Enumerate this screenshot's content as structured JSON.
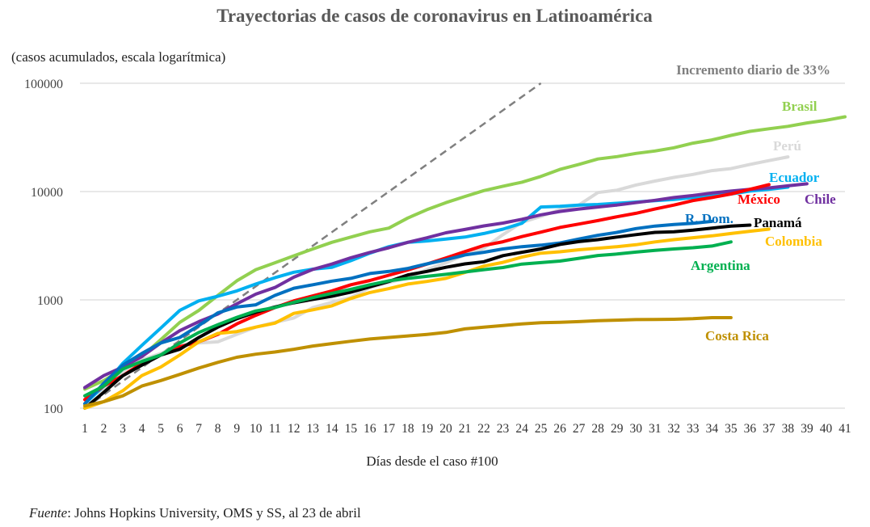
{
  "chart_data": {
    "type": "line",
    "title": "Trayectorias de casos de coronavirus en Latinoamérica",
    "subtitle": "(casos acumulados, escala logarítmica)",
    "xlabel": "Días desde el caso #100",
    "ylabel": "",
    "y_scale": "log",
    "ylim": [
      100,
      100000
    ],
    "xlim": [
      1,
      41
    ],
    "y_ticks": [
      "100",
      "1000",
      "10000",
      "100000"
    ],
    "x_ticks": [
      "1",
      "2",
      "3",
      "4",
      "5",
      "6",
      "7",
      "8",
      "9",
      "10",
      "11",
      "12",
      "13",
      "14",
      "15",
      "16",
      "17",
      "18",
      "19",
      "20",
      "21",
      "22",
      "23",
      "24",
      "25",
      "26",
      "27",
      "28",
      "29",
      "30",
      "31",
      "32",
      "33",
      "34",
      "35",
      "36",
      "37",
      "38",
      "39",
      "40",
      "41"
    ],
    "grid": "horizontal",
    "reference_line": {
      "label": "Incremento diario de 33%",
      "color": "#808080",
      "style": "dashed",
      "x": [
        1,
        25
      ],
      "y": [
        100,
        100000
      ]
    },
    "series": [
      {
        "name": "Brasil",
        "color": "#92d050",
        "x": [
          1,
          2,
          3,
          4,
          5,
          6,
          7,
          8,
          9,
          10,
          11,
          12,
          13,
          14,
          15,
          16,
          17,
          18,
          19,
          20,
          21,
          22,
          23,
          24,
          25,
          26,
          27,
          28,
          29,
          30,
          31,
          32,
          33,
          34,
          35,
          36,
          37,
          38,
          39,
          40,
          41
        ],
        "values": [
          150,
          180,
          230,
          300,
          430,
          620,
          800,
          1100,
          1500,
          1900,
          2200,
          2550,
          2950,
          3400,
          3800,
          4250,
          4600,
          5700,
          6800,
          7900,
          9000,
          10200,
          11200,
          12200,
          13800,
          16000,
          17800,
          20000,
          21000,
          22500,
          23700,
          25400,
          28000,
          30000,
          33000,
          36000,
          38000,
          40000,
          43000,
          45500,
          49000
        ]
      },
      {
        "name": "Perú",
        "color": "#d9d9d9",
        "x": [
          1,
          2,
          3,
          4,
          5,
          6,
          7,
          8,
          9,
          10,
          11,
          12,
          13,
          14,
          15,
          16,
          17,
          18,
          19,
          20,
          21,
          22,
          23,
          24,
          25,
          26,
          27,
          28,
          29,
          30,
          31,
          32,
          33,
          34,
          35,
          36,
          37,
          38
        ],
        "values": [
          120,
          150,
          220,
          280,
          320,
          380,
          400,
          410,
          480,
          560,
          620,
          680,
          850,
          950,
          1050,
          1300,
          1450,
          1600,
          1900,
          2200,
          2600,
          3000,
          4000,
          5200,
          5900,
          6800,
          7500,
          9800,
          10300,
          11500,
          12500,
          13500,
          14400,
          15600,
          16300,
          17800,
          19300,
          20900
        ]
      },
      {
        "name": "Ecuador",
        "color": "#00b0f0",
        "x": [
          1,
          2,
          3,
          4,
          5,
          6,
          7,
          8,
          9,
          10,
          11,
          12,
          13,
          14,
          15,
          16,
          17,
          18,
          19,
          20,
          21,
          22,
          23,
          24,
          25,
          26,
          27,
          28,
          29,
          30,
          31,
          32,
          33,
          34,
          35,
          36,
          37,
          38
        ],
        "values": [
          110,
          160,
          260,
          380,
          550,
          800,
          980,
          1080,
          1210,
          1400,
          1600,
          1800,
          1920,
          2000,
          2300,
          2700,
          3100,
          3400,
          3500,
          3650,
          3800,
          4100,
          4500,
          5100,
          7200,
          7300,
          7500,
          7600,
          7800,
          8000,
          8250,
          8450,
          8800,
          9200,
          9500,
          10100,
          10500,
          11000
        ]
      },
      {
        "name": "Chile",
        "color": "#7030a0",
        "x": [
          1,
          2,
          3,
          4,
          5,
          6,
          7,
          8,
          9,
          10,
          11,
          12,
          13,
          14,
          15,
          16,
          17,
          18,
          19,
          20,
          21,
          22,
          23,
          24,
          25,
          26,
          27,
          28,
          29,
          30,
          31,
          32,
          33,
          34,
          35,
          36,
          37,
          38,
          39
        ],
        "values": [
          155,
          200,
          240,
          300,
          400,
          520,
          630,
          740,
          920,
          1130,
          1300,
          1620,
          1910,
          2140,
          2450,
          2740,
          3030,
          3400,
          3740,
          4160,
          4470,
          4820,
          5120,
          5550,
          6100,
          6550,
          6900,
          7200,
          7500,
          7900,
          8300,
          8800,
          9200,
          9700,
          10100,
          10500,
          10800,
          11300,
          11800
        ]
      },
      {
        "name": "México",
        "color": "#ff0000",
        "x": [
          1,
          2,
          3,
          4,
          5,
          6,
          7,
          8,
          9,
          10,
          11,
          12,
          13,
          14,
          15,
          16,
          17,
          18,
          19,
          20,
          21,
          22,
          23,
          24,
          25,
          26,
          27,
          28,
          29,
          30,
          31,
          32,
          33,
          34,
          35,
          36,
          37
        ],
        "values": [
          120,
          160,
          200,
          260,
          310,
          370,
          410,
          480,
          600,
          720,
          850,
          980,
          1090,
          1210,
          1380,
          1510,
          1690,
          1890,
          2140,
          2440,
          2790,
          3180,
          3440,
          3840,
          4220,
          4660,
          5010,
          5400,
          5850,
          6300,
          6900,
          7500,
          8250,
          8800,
          9500,
          10500,
          11600
        ]
      },
      {
        "name": "R. Dom.",
        "color": "#0070c0",
        "x": [
          1,
          2,
          3,
          4,
          5,
          6,
          7,
          8,
          9,
          10,
          11,
          12,
          13,
          14,
          15,
          16,
          17,
          18,
          19,
          20,
          21,
          22,
          23,
          24,
          25,
          26,
          27,
          28,
          29,
          30,
          31,
          32,
          33,
          34
        ],
        "values": [
          110,
          170,
          250,
          320,
          400,
          450,
          580,
          760,
          860,
          900,
          1100,
          1280,
          1380,
          1490,
          1580,
          1750,
          1830,
          1950,
          2150,
          2350,
          2600,
          2750,
          2950,
          3100,
          3200,
          3350,
          3650,
          3950,
          4200,
          4550,
          4800,
          4960,
          5100,
          5300
        ]
      },
      {
        "name": "Panamá",
        "color": "#000000",
        "x": [
          1,
          2,
          3,
          4,
          5,
          6,
          7,
          8,
          9,
          10,
          11,
          12,
          13,
          14,
          15,
          16,
          17,
          18,
          19,
          20,
          21,
          22,
          23,
          24,
          25,
          26,
          27,
          28,
          29,
          30,
          31,
          32,
          33,
          34,
          35,
          36
        ],
        "values": [
          100,
          140,
          200,
          250,
          310,
          350,
          450,
          560,
          670,
          770,
          860,
          940,
          1010,
          1080,
          1180,
          1320,
          1480,
          1700,
          1830,
          2000,
          2150,
          2250,
          2560,
          2750,
          2950,
          3250,
          3450,
          3600,
          3800,
          4000,
          4200,
          4250,
          4400,
          4600,
          4800,
          4900
        ]
      },
      {
        "name": "Colombia",
        "color": "#ffc000",
        "x": [
          1,
          2,
          3,
          4,
          5,
          6,
          7,
          8,
          9,
          10,
          11,
          12,
          13,
          14,
          15,
          16,
          17,
          18,
          19,
          20,
          21,
          22,
          23,
          24,
          25,
          26,
          27,
          28,
          29,
          30,
          31,
          32,
          33,
          34,
          35,
          36,
          37
        ],
        "values": [
          100,
          115,
          145,
          200,
          240,
          310,
          410,
          490,
          510,
          560,
          610,
          750,
          810,
          880,
          1030,
          1170,
          1270,
          1400,
          1480,
          1580,
          1790,
          2050,
          2220,
          2480,
          2700,
          2780,
          2900,
          3000,
          3100,
          3230,
          3430,
          3600,
          3750,
          3900,
          4100,
          4300,
          4500
        ]
      },
      {
        "name": "Argentina",
        "color": "#00b050",
        "x": [
          1,
          2,
          3,
          4,
          5,
          6,
          7,
          8,
          9,
          10,
          11,
          12,
          13,
          14,
          15,
          16,
          17,
          18,
          19,
          20,
          21,
          22,
          23,
          24,
          25,
          26,
          27,
          28,
          29,
          30,
          31,
          32,
          33,
          34,
          35
        ],
        "values": [
          130,
          160,
          230,
          270,
          310,
          400,
          500,
          590,
          690,
          790,
          850,
          950,
          1050,
          1150,
          1250,
          1380,
          1500,
          1580,
          1650,
          1720,
          1810,
          1900,
          1990,
          2140,
          2210,
          2280,
          2420,
          2570,
          2650,
          2760,
          2860,
          2950,
          3030,
          3140,
          3430
        ]
      },
      {
        "name": "Costa Rica",
        "color": "#bf9000",
        "x": [
          1,
          2,
          3,
          4,
          5,
          6,
          7,
          8,
          9,
          10,
          11,
          12,
          13,
          14,
          15,
          16,
          17,
          18,
          19,
          20,
          21,
          22,
          23,
          24,
          25,
          26,
          27,
          28,
          29,
          30,
          31,
          32,
          33,
          34,
          35
        ],
        "values": [
          105,
          115,
          130,
          160,
          180,
          205,
          235,
          265,
          295,
          315,
          330,
          350,
          375,
          395,
          415,
          435,
          450,
          465,
          480,
          500,
          540,
          560,
          580,
          600,
          615,
          620,
          630,
          642,
          650,
          658,
          660,
          662,
          670,
          685,
          685
        ]
      }
    ]
  },
  "source_prefix": "Fuente",
  "source_text": ": Johns Hopkins University, OMS y SS, al 23 de abril"
}
